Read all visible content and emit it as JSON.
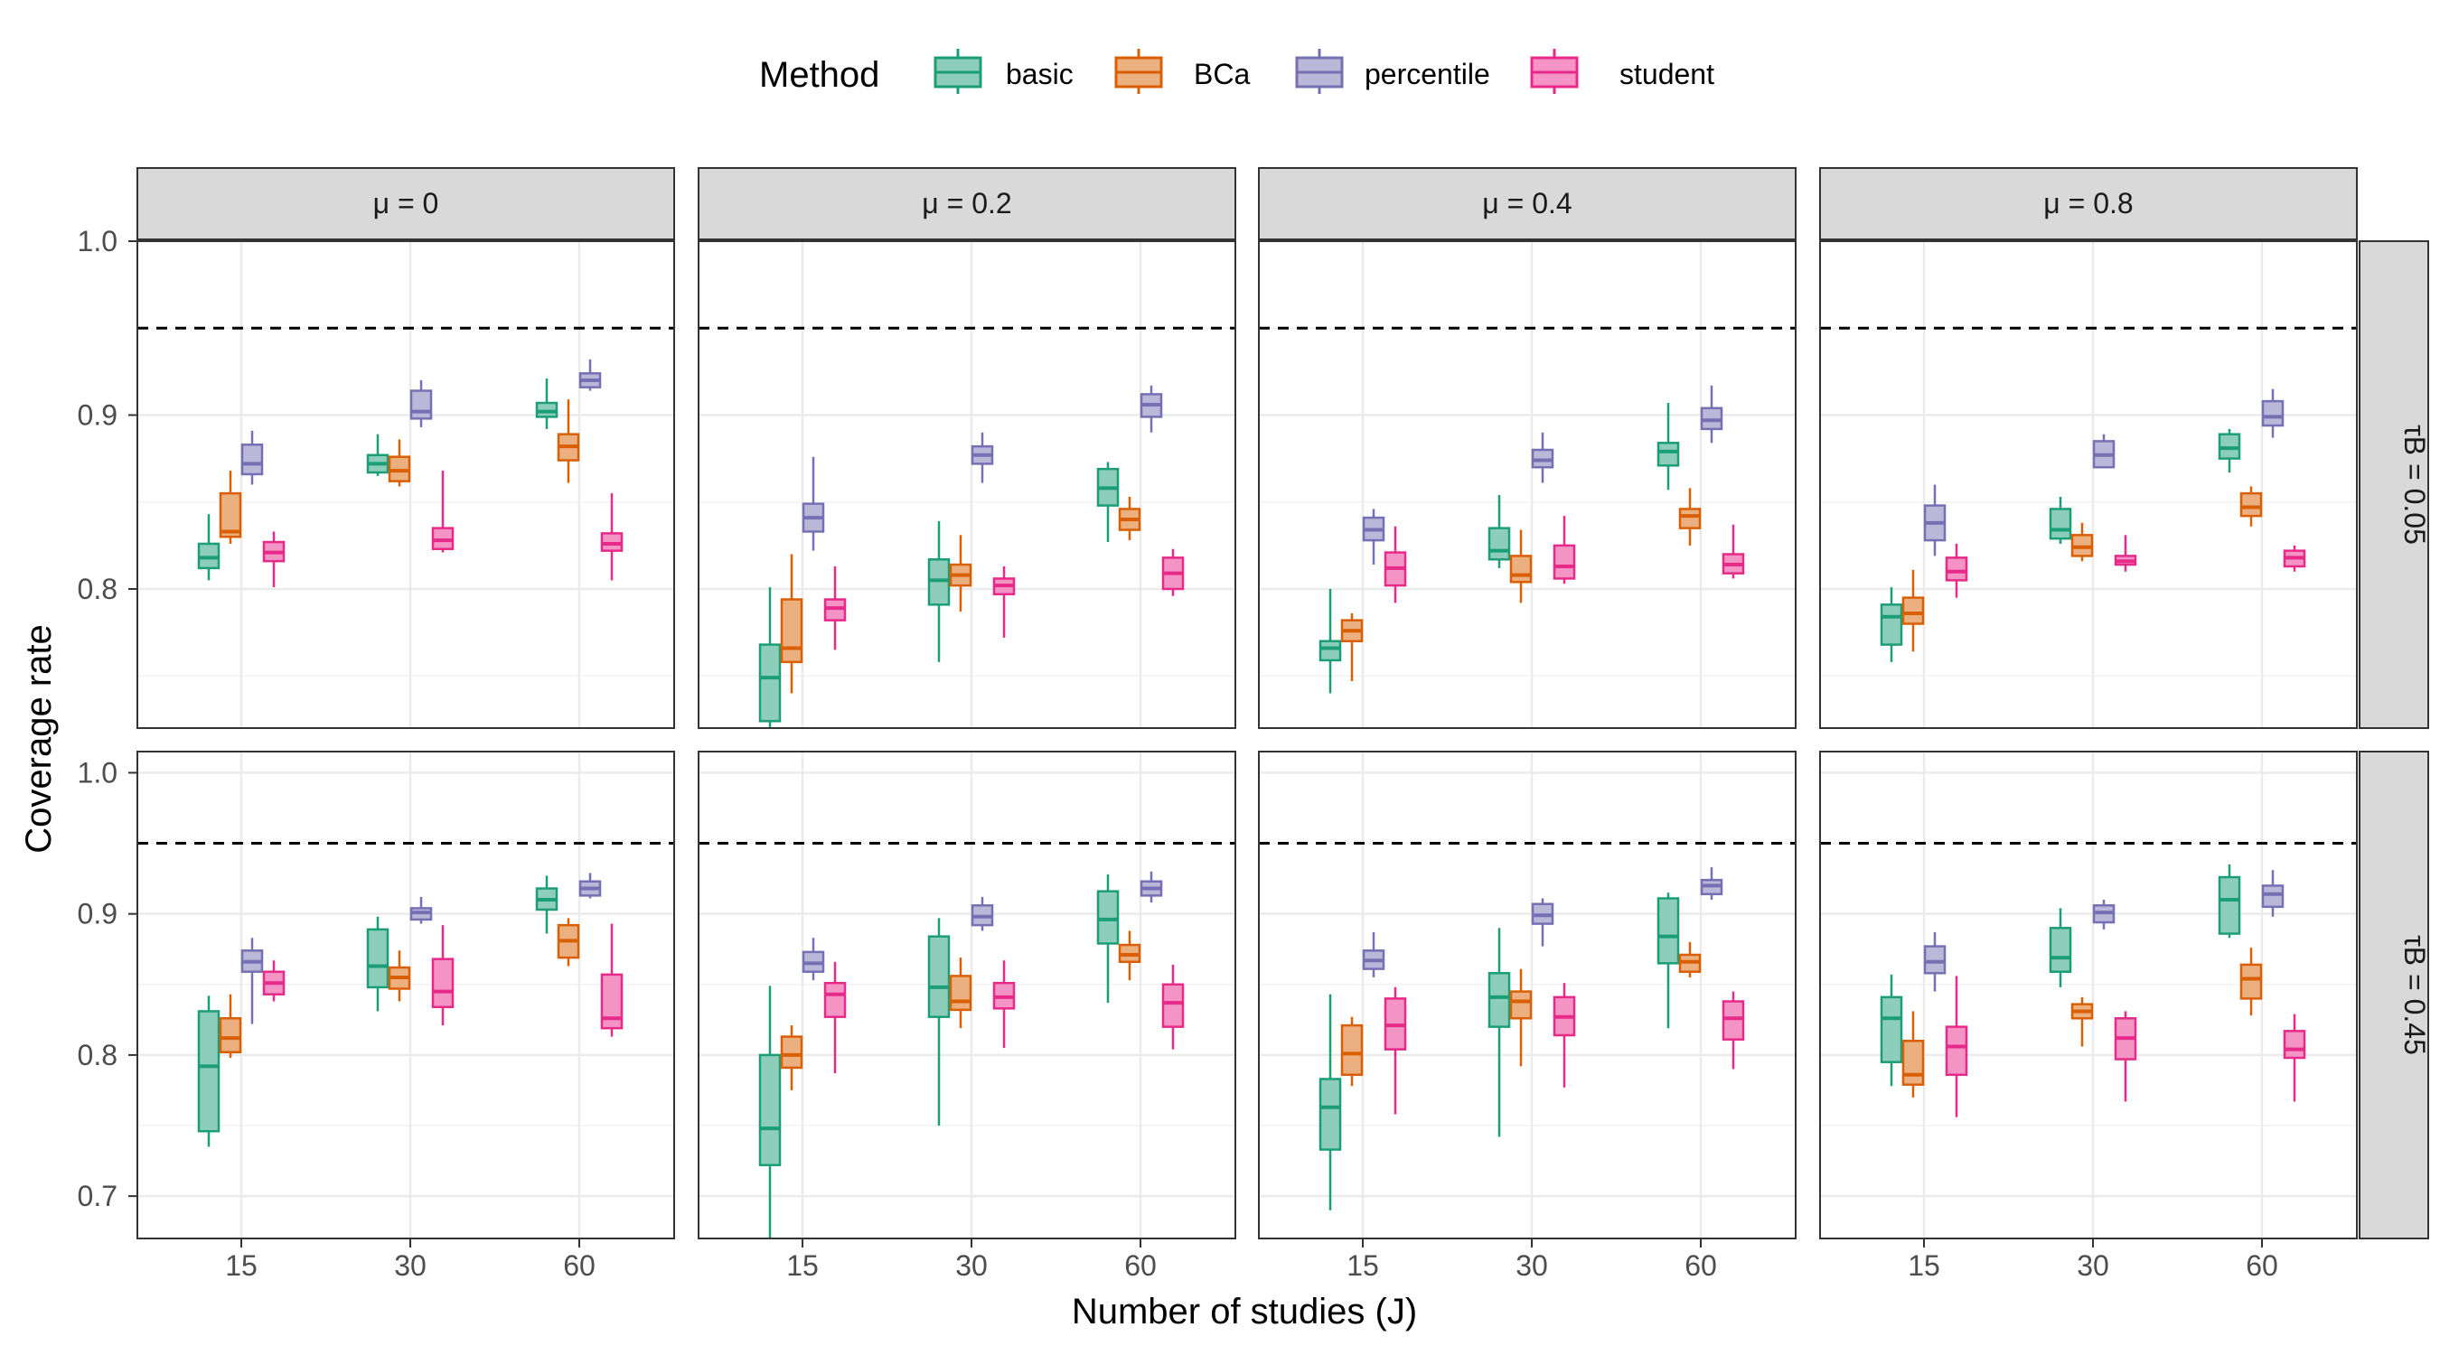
{
  "chart_data": {
    "type": "box",
    "xlabel": "Number of studies (J)",
    "ylabel": "Coverage rate",
    "x_categories": [
      "15",
      "30",
      "60"
    ],
    "reference_line": 0.95,
    "legend": {
      "title": "Method",
      "position": "top",
      "items": [
        {
          "name": "basic",
          "color": "#1B9E77",
          "fill": "#8DCEBB"
        },
        {
          "name": "BCa",
          "color": "#D95F02",
          "fill": "#ECAF80"
        },
        {
          "name": "percentile",
          "color": "#7570B3",
          "fill": "#BAB7D9"
        },
        {
          "name": "student",
          "color": "#E7298A",
          "fill": "#F394C4"
        }
      ]
    },
    "col_facets": [
      "μ = 0",
      "μ = 0.2",
      "μ = 0.4",
      "μ = 0.8"
    ],
    "row_facets": [
      {
        "label": "τB = 0.05",
        "ylim": [
          0.72,
          1.0
        ],
        "ticks": [
          "1.0",
          "0.9",
          "0.8"
        ],
        "tick_values": [
          1.0,
          0.9,
          0.8
        ]
      },
      {
        "label": "τB = 0.45",
        "ylim": [
          0.67,
          1.015
        ],
        "ticks": [
          "1.0",
          "0.9",
          "0.8",
          "0.7"
        ],
        "tick_values": [
          1.0,
          0.9,
          0.8,
          0.7
        ]
      }
    ],
    "grid": true,
    "panels": [
      {
        "row": 0,
        "col": 0,
        "boxes": {
          "basic": [
            [
              0.805,
              0.812,
              0.818,
              0.826,
              0.843
            ],
            [
              0.865,
              0.867,
              0.872,
              0.877,
              0.889
            ],
            [
              0.892,
              0.899,
              0.902,
              0.907,
              0.921
            ]
          ],
          "BCa": [
            [
              0.826,
              0.83,
              0.833,
              0.855,
              0.868
            ],
            [
              0.859,
              0.862,
              0.868,
              0.876,
              0.886
            ],
            [
              0.861,
              0.874,
              0.882,
              0.889,
              0.909
            ]
          ],
          "percentile": [
            [
              0.86,
              0.866,
              0.872,
              0.883,
              0.891
            ],
            [
              0.893,
              0.898,
              0.902,
              0.914,
              0.92
            ],
            [
              0.914,
              0.916,
              0.92,
              0.924,
              0.932
            ]
          ],
          "student": [
            [
              0.801,
              0.816,
              0.821,
              0.827,
              0.833
            ],
            [
              0.821,
              0.823,
              0.828,
              0.835,
              0.868
            ],
            [
              0.805,
              0.822,
              0.826,
              0.832,
              0.855
            ]
          ]
        }
      },
      {
        "row": 0,
        "col": 1,
        "boxes": {
          "basic": [
            [
              0.72,
              0.724,
              0.749,
              0.768,
              0.801
            ],
            [
              0.758,
              0.791,
              0.805,
              0.817,
              0.839
            ],
            [
              0.827,
              0.848,
              0.858,
              0.869,
              0.873
            ]
          ],
          "BCa": [
            [
              0.74,
              0.758,
              0.766,
              0.794,
              0.82
            ],
            [
              0.787,
              0.802,
              0.808,
              0.814,
              0.831
            ],
            [
              0.828,
              0.834,
              0.84,
              0.846,
              0.853
            ]
          ],
          "percentile": [
            [
              0.822,
              0.833,
              0.841,
              0.849,
              0.876
            ],
            [
              0.861,
              0.872,
              0.877,
              0.882,
              0.89
            ],
            [
              0.89,
              0.899,
              0.906,
              0.912,
              0.917
            ]
          ],
          "student": [
            [
              0.765,
              0.782,
              0.789,
              0.794,
              0.813
            ],
            [
              0.772,
              0.797,
              0.802,
              0.806,
              0.813
            ],
            [
              0.796,
              0.8,
              0.809,
              0.818,
              0.823
            ]
          ]
        }
      },
      {
        "row": 0,
        "col": 2,
        "boxes": {
          "basic": [
            [
              0.74,
              0.759,
              0.766,
              0.77,
              0.8
            ],
            [
              0.812,
              0.817,
              0.822,
              0.835,
              0.854
            ],
            [
              0.857,
              0.871,
              0.879,
              0.884,
              0.907
            ]
          ],
          "BCa": [
            [
              0.747,
              0.77,
              0.776,
              0.782,
              0.786
            ],
            [
              0.792,
              0.804,
              0.808,
              0.819,
              0.834
            ],
            [
              0.825,
              0.835,
              0.842,
              0.846,
              0.858
            ]
          ],
          "percentile": [
            [
              0.814,
              0.828,
              0.834,
              0.841,
              0.846
            ],
            [
              0.861,
              0.87,
              0.874,
              0.88,
              0.89
            ],
            [
              0.884,
              0.892,
              0.897,
              0.904,
              0.917
            ]
          ],
          "student": [
            [
              0.792,
              0.802,
              0.812,
              0.821,
              0.836
            ],
            [
              0.803,
              0.806,
              0.813,
              0.825,
              0.842
            ],
            [
              0.806,
              0.809,
              0.814,
              0.82,
              0.837
            ]
          ]
        }
      },
      {
        "row": 0,
        "col": 3,
        "boxes": {
          "basic": [
            [
              0.758,
              0.768,
              0.784,
              0.791,
              0.801
            ],
            [
              0.826,
              0.829,
              0.834,
              0.846,
              0.853
            ],
            [
              0.867,
              0.875,
              0.881,
              0.889,
              0.892
            ]
          ],
          "BCa": [
            [
              0.764,
              0.78,
              0.786,
              0.795,
              0.811
            ],
            [
              0.816,
              0.819,
              0.824,
              0.831,
              0.838
            ],
            [
              0.836,
              0.842,
              0.847,
              0.855,
              0.859
            ]
          ],
          "percentile": [
            [
              0.819,
              0.828,
              0.838,
              0.848,
              0.86
            ],
            [
              0.87,
              0.87,
              0.877,
              0.885,
              0.889
            ],
            [
              0.887,
              0.894,
              0.899,
              0.908,
              0.915
            ]
          ],
          "student": [
            [
              0.795,
              0.805,
              0.81,
              0.818,
              0.826
            ],
            [
              0.81,
              0.814,
              0.816,
              0.819,
              0.831
            ],
            [
              0.81,
              0.813,
              0.818,
              0.822,
              0.825
            ]
          ]
        }
      },
      {
        "row": 1,
        "col": 0,
        "boxes": {
          "basic": [
            [
              0.735,
              0.746,
              0.792,
              0.831,
              0.842
            ],
            [
              0.831,
              0.848,
              0.863,
              0.889,
              0.898
            ],
            [
              0.886,
              0.903,
              0.91,
              0.918,
              0.927
            ]
          ],
          "BCa": [
            [
              0.798,
              0.802,
              0.812,
              0.826,
              0.843
            ],
            [
              0.838,
              0.847,
              0.855,
              0.862,
              0.874
            ],
            [
              0.863,
              0.869,
              0.881,
              0.892,
              0.897
            ]
          ],
          "percentile": [
            [
              0.822,
              0.859,
              0.866,
              0.874,
              0.883
            ],
            [
              0.893,
              0.896,
              0.901,
              0.904,
              0.912
            ],
            [
              0.911,
              0.913,
              0.918,
              0.923,
              0.929
            ]
          ],
          "student": [
            [
              0.838,
              0.843,
              0.851,
              0.859,
              0.867
            ],
            [
              0.821,
              0.834,
              0.845,
              0.868,
              0.892
            ],
            [
              0.813,
              0.819,
              0.826,
              0.857,
              0.893
            ]
          ]
        }
      },
      {
        "row": 1,
        "col": 1,
        "boxes": {
          "basic": [
            [
              0.67,
              0.722,
              0.748,
              0.8,
              0.849
            ],
            [
              0.75,
              0.827,
              0.848,
              0.884,
              0.897
            ],
            [
              0.837,
              0.879,
              0.896,
              0.916,
              0.928
            ]
          ],
          "BCa": [
            [
              0.775,
              0.791,
              0.8,
              0.813,
              0.821
            ],
            [
              0.819,
              0.832,
              0.838,
              0.856,
              0.869
            ],
            [
              0.853,
              0.866,
              0.871,
              0.878,
              0.888
            ]
          ],
          "percentile": [
            [
              0.853,
              0.859,
              0.865,
              0.873,
              0.883
            ],
            [
              0.888,
              0.892,
              0.898,
              0.906,
              0.912
            ],
            [
              0.908,
              0.913,
              0.918,
              0.923,
              0.93
            ]
          ],
          "student": [
            [
              0.787,
              0.827,
              0.843,
              0.851,
              0.866
            ],
            [
              0.805,
              0.833,
              0.841,
              0.851,
              0.867
            ],
            [
              0.804,
              0.82,
              0.837,
              0.85,
              0.864
            ]
          ]
        }
      },
      {
        "row": 1,
        "col": 2,
        "boxes": {
          "basic": [
            [
              0.69,
              0.733,
              0.763,
              0.783,
              0.843
            ],
            [
              0.742,
              0.82,
              0.841,
              0.858,
              0.89
            ],
            [
              0.819,
              0.865,
              0.884,
              0.911,
              0.915
            ]
          ],
          "BCa": [
            [
              0.778,
              0.786,
              0.801,
              0.821,
              0.827
            ],
            [
              0.792,
              0.826,
              0.838,
              0.845,
              0.861
            ],
            [
              0.855,
              0.859,
              0.866,
              0.871,
              0.88
            ]
          ],
          "percentile": [
            [
              0.855,
              0.861,
              0.867,
              0.874,
              0.887
            ],
            [
              0.877,
              0.893,
              0.899,
              0.907,
              0.911
            ],
            [
              0.91,
              0.914,
              0.92,
              0.924,
              0.933
            ]
          ],
          "student": [
            [
              0.758,
              0.804,
              0.821,
              0.84,
              0.848
            ],
            [
              0.777,
              0.814,
              0.827,
              0.841,
              0.851
            ],
            [
              0.79,
              0.811,
              0.826,
              0.838,
              0.845
            ]
          ]
        }
      },
      {
        "row": 1,
        "col": 3,
        "boxes": {
          "basic": [
            [
              0.778,
              0.795,
              0.826,
              0.841,
              0.857
            ],
            [
              0.848,
              0.859,
              0.869,
              0.89,
              0.904
            ],
            [
              0.883,
              0.886,
              0.91,
              0.926,
              0.935
            ]
          ],
          "BCa": [
            [
              0.77,
              0.779,
              0.786,
              0.81,
              0.831
            ],
            [
              0.806,
              0.826,
              0.831,
              0.836,
              0.841
            ],
            [
              0.828,
              0.84,
              0.854,
              0.864,
              0.876
            ]
          ],
          "percentile": [
            [
              0.845,
              0.858,
              0.866,
              0.877,
              0.887
            ],
            [
              0.889,
              0.894,
              0.901,
              0.906,
              0.91
            ],
            [
              0.898,
              0.905,
              0.914,
              0.92,
              0.931
            ]
          ],
          "student": [
            [
              0.756,
              0.786,
              0.806,
              0.82,
              0.856
            ],
            [
              0.767,
              0.797,
              0.812,
              0.826,
              0.831
            ],
            [
              0.767,
              0.798,
              0.804,
              0.817,
              0.829
            ]
          ]
        }
      }
    ]
  }
}
